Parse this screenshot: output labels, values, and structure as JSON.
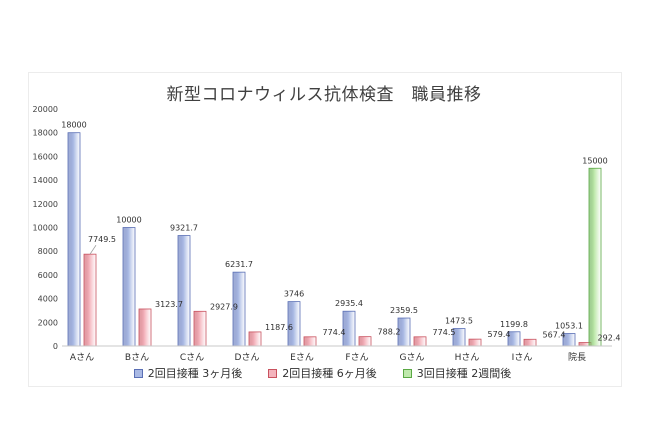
{
  "chart_data": {
    "type": "bar",
    "title": "新型コロナウィルス抗体検査　職員推移",
    "categories": [
      "Aさん",
      "Bさん",
      "Cさん",
      "Dさん",
      "Eさん",
      "Fさん",
      "Gさん",
      "Hさん",
      "Iさん",
      "院長"
    ],
    "series": [
      {
        "name": "2回目接種 3ヶ月後",
        "values": [
          18000,
          10000,
          9321.7,
          6231.7,
          3746,
          2935.4,
          2359.5,
          1473.5,
          1199.8,
          1053.1
        ],
        "labels": [
          "18000",
          "10000",
          "9321.7",
          "6231.7",
          "3746",
          "2935.4",
          "2359.5",
          "1473.5",
          "1199.8",
          "1053.1"
        ],
        "color": "#a9b9e4",
        "edge": "#5a6fb5"
      },
      {
        "name": "2回目接種 6ヶ月後",
        "values": [
          7749.5,
          3123.7,
          2927.9,
          1187.6,
          774.4,
          788.2,
          774.5,
          579.4,
          567.4,
          292.4
        ],
        "labels": [
          "7749.5",
          "3123.7",
          "2927.9",
          "1187.6",
          "774.4",
          "788.2",
          "774.5",
          "579.4",
          "567.4",
          "292.4"
        ],
        "color": "#f4b4bd",
        "edge": "#c9525f"
      },
      {
        "name": "3回目接種 2週間後",
        "values": [
          null,
          null,
          null,
          null,
          null,
          null,
          null,
          null,
          null,
          15000
        ],
        "labels": [
          null,
          null,
          null,
          null,
          null,
          null,
          null,
          null,
          null,
          "15000"
        ],
        "color": "#bfe9ac",
        "edge": "#5aa844"
      }
    ],
    "ylim": [
      0,
      20000
    ],
    "yticks": [
      "0",
      "2000",
      "4000",
      "6000",
      "8000",
      "10000",
      "12000",
      "14000",
      "16000",
      "18000",
      "20000"
    ],
    "grid": false,
    "legend_position": "bottom"
  }
}
